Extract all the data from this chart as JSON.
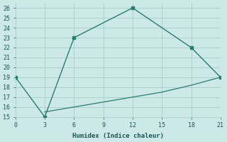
{
  "xlabel": "Humidex (Indice chaleur)",
  "x_upper": [
    0,
    3,
    6,
    12,
    18,
    21
  ],
  "y_upper": [
    19,
    15,
    23,
    26,
    22,
    19
  ],
  "x_lower": [
    3,
    6,
    9,
    12,
    15,
    18,
    21
  ],
  "y_lower": [
    15.5,
    16.0,
    16.5,
    17.0,
    17.5,
    18.2,
    19.0
  ],
  "xlim": [
    0,
    21
  ],
  "ylim": [
    15,
    26.5
  ],
  "xticks": [
    0,
    3,
    6,
    9,
    12,
    15,
    18,
    21
  ],
  "yticks": [
    15,
    16,
    17,
    18,
    19,
    20,
    21,
    22,
    23,
    24,
    25,
    26
  ],
  "line_color": "#2a7d6e",
  "bg_color": "#cce9e7",
  "grid_color": "#a8ceca",
  "font_color": "#1e5555",
  "font_family": "monospace"
}
